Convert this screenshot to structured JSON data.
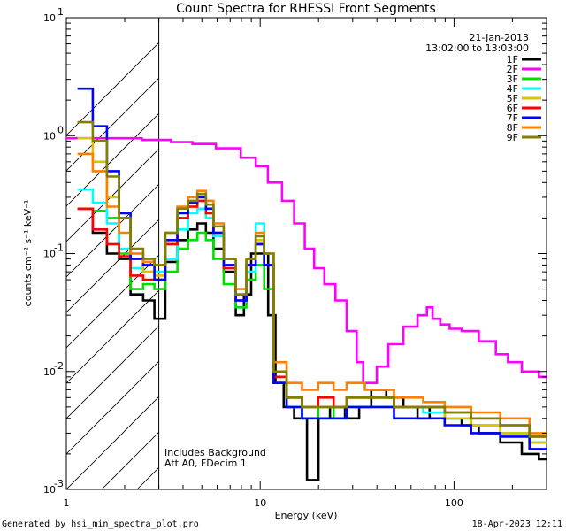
{
  "chart_data": {
    "type": "line",
    "title": "Count Spectra for RHESSI Front Segments",
    "xlabel": "Energy (keV)",
    "ylabel": "counts cm⁻² s⁻¹ keV⁻¹",
    "xscale": "log",
    "yscale": "log",
    "xlim": [
      1,
      300
    ],
    "ylim": [
      0.001,
      10
    ],
    "x_ticks": [
      {
        "value": 1,
        "label": "1"
      },
      {
        "value": 10,
        "label": "10"
      },
      {
        "value": 100,
        "label": "100"
      }
    ],
    "y_ticks": [
      {
        "value": 0.001,
        "base": "10",
        "exp": "-3"
      },
      {
        "value": 0.01,
        "base": "10",
        "exp": "-2"
      },
      {
        "value": 0.1,
        "base": "10",
        "exp": "-1"
      },
      {
        "value": 1,
        "base": "10",
        "exp": "0"
      },
      {
        "value": 10,
        "base": "10",
        "exp": "1"
      }
    ],
    "excluded_region": [
      1,
      3
    ],
    "date": "21-Jan-2013",
    "time_range": "13:02:00 to 13:03:00",
    "annotations": [
      "Includes Background",
      "Att A0, FDecim 1"
    ],
    "legend_position": "top-right",
    "series": [
      {
        "name": "1F",
        "color": "#000000",
        "points": [
          [
            1.25,
            0.24
          ],
          [
            1.5,
            0.15
          ],
          [
            1.75,
            0.1
          ],
          [
            2.0,
            0.09
          ],
          [
            2.3,
            0.045
          ],
          [
            2.7,
            0.04
          ],
          [
            3.0,
            0.028
          ],
          [
            3.5,
            0.085
          ],
          [
            4.0,
            0.13
          ],
          [
            4.5,
            0.16
          ],
          [
            5.0,
            0.18
          ],
          [
            5.5,
            0.15
          ],
          [
            6.0,
            0.11
          ],
          [
            7.0,
            0.07
          ],
          [
            8.0,
            0.03
          ],
          [
            8.5,
            0.045
          ],
          [
            9.5,
            0.1
          ],
          [
            10.5,
            0.1
          ],
          [
            11.5,
            0.03
          ],
          [
            12.5,
            0.008
          ],
          [
            14,
            0.005
          ],
          [
            16,
            0.004
          ],
          [
            19,
            0.0012
          ],
          [
            21,
            0.004
          ],
          [
            25,
            0.005
          ],
          [
            30,
            0.004
          ],
          [
            35,
            0.005
          ],
          [
            40,
            0.007
          ],
          [
            50,
            0.006
          ],
          [
            60,
            0.005
          ],
          [
            70,
            0.004
          ],
          [
            80,
            0.005
          ],
          [
            100,
            0.004
          ],
          [
            120,
            0.0035
          ],
          [
            150,
            0.003
          ],
          [
            200,
            0.0025
          ],
          [
            250,
            0.002
          ],
          [
            300,
            0.0018
          ]
        ]
      },
      {
        "name": "2F",
        "color": "#ff00ff",
        "points": [
          [
            1.25,
            0.95
          ],
          [
            2.0,
            0.95
          ],
          [
            3.0,
            0.92
          ],
          [
            4.0,
            0.88
          ],
          [
            5.0,
            0.85
          ],
          [
            7.0,
            0.78
          ],
          [
            9.0,
            0.65
          ],
          [
            10,
            0.55
          ],
          [
            12,
            0.4
          ],
          [
            14,
            0.28
          ],
          [
            16,
            0.18
          ],
          [
            18,
            0.11
          ],
          [
            20,
            0.075
          ],
          [
            23,
            0.055
          ],
          [
            26,
            0.04
          ],
          [
            30,
            0.022
          ],
          [
            33,
            0.012
          ],
          [
            35,
            0.008
          ],
          [
            38,
            0.008
          ],
          [
            42,
            0.011
          ],
          [
            50,
            0.017
          ],
          [
            60,
            0.024
          ],
          [
            70,
            0.03
          ],
          [
            75,
            0.035
          ],
          [
            80,
            0.028
          ],
          [
            90,
            0.025
          ],
          [
            100,
            0.023
          ],
          [
            120,
            0.022
          ],
          [
            150,
            0.018
          ],
          [
            180,
            0.014
          ],
          [
            200,
            0.012
          ],
          [
            250,
            0.01
          ],
          [
            300,
            0.009
          ]
        ]
      },
      {
        "name": "3F",
        "color": "#00e000",
        "points": [
          [
            1.25,
            0.24
          ],
          [
            1.5,
            0.23
          ],
          [
            1.75,
            0.2
          ],
          [
            2.0,
            0.1
          ],
          [
            2.3,
            0.05
          ],
          [
            2.7,
            0.055
          ],
          [
            3.0,
            0.05
          ],
          [
            3.5,
            0.07
          ],
          [
            4.0,
            0.11
          ],
          [
            4.5,
            0.13
          ],
          [
            5.0,
            0.15
          ],
          [
            5.5,
            0.13
          ],
          [
            6.0,
            0.09
          ],
          [
            7.0,
            0.055
          ],
          [
            8.0,
            0.035
          ],
          [
            9.0,
            0.06
          ],
          [
            10.0,
            0.08
          ],
          [
            11.0,
            0.05
          ],
          [
            12.5,
            0.008
          ],
          [
            15,
            0.006
          ],
          [
            18,
            0.004
          ],
          [
            22,
            0.005
          ],
          [
            26,
            0.004
          ],
          [
            30,
            0.006
          ],
          [
            40,
            0.006
          ],
          [
            60,
            0.005
          ],
          [
            80,
            0.005
          ],
          [
            100,
            0.004
          ],
          [
            150,
            0.0035
          ],
          [
            200,
            0.003
          ],
          [
            300,
            0.0025
          ]
        ]
      },
      {
        "name": "4F",
        "color": "#00ffff",
        "points": [
          [
            1.25,
            0.35
          ],
          [
            1.5,
            0.27
          ],
          [
            1.75,
            0.18
          ],
          [
            2.0,
            0.11
          ],
          [
            2.3,
            0.075
          ],
          [
            2.7,
            0.07
          ],
          [
            3.0,
            0.07
          ],
          [
            3.5,
            0.09
          ],
          [
            4.0,
            0.16
          ],
          [
            4.5,
            0.22
          ],
          [
            5.0,
            0.24
          ],
          [
            5.5,
            0.2
          ],
          [
            6.0,
            0.14
          ],
          [
            7.0,
            0.08
          ],
          [
            8.0,
            0.045
          ],
          [
            9.0,
            0.07
          ],
          [
            10.0,
            0.18
          ],
          [
            11.0,
            0.08
          ],
          [
            12.5,
            0.009
          ],
          [
            15,
            0.005
          ],
          [
            18,
            0.004
          ],
          [
            22,
            0.004
          ],
          [
            26,
            0.004
          ],
          [
            30,
            0.005
          ],
          [
            40,
            0.005
          ],
          [
            60,
            0.005
          ],
          [
            80,
            0.0045
          ],
          [
            100,
            0.004
          ],
          [
            150,
            0.0035
          ],
          [
            200,
            0.003
          ],
          [
            300,
            0.0025
          ]
        ]
      },
      {
        "name": "5F",
        "color": "#e0c000",
        "points": [
          [
            1.25,
            0.95
          ],
          [
            1.5,
            0.6
          ],
          [
            1.75,
            0.3
          ],
          [
            2.0,
            0.2
          ],
          [
            2.3,
            0.1
          ],
          [
            2.7,
            0.07
          ],
          [
            3.0,
            0.065
          ],
          [
            3.5,
            0.12
          ],
          [
            4.0,
            0.2
          ],
          [
            4.5,
            0.25
          ],
          [
            5.0,
            0.28
          ],
          [
            5.5,
            0.22
          ],
          [
            6.0,
            0.15
          ],
          [
            7.0,
            0.08
          ],
          [
            8.0,
            0.045
          ],
          [
            9.0,
            0.08
          ],
          [
            10.0,
            0.13
          ],
          [
            11.0,
            0.1
          ],
          [
            12.5,
            0.01
          ],
          [
            15,
            0.006
          ],
          [
            18,
            0.005
          ],
          [
            22,
            0.005
          ],
          [
            26,
            0.005
          ],
          [
            30,
            0.006
          ],
          [
            40,
            0.006
          ],
          [
            60,
            0.005
          ],
          [
            80,
            0.005
          ],
          [
            100,
            0.004
          ],
          [
            150,
            0.0035
          ],
          [
            200,
            0.003
          ],
          [
            300,
            0.0025
          ]
        ]
      },
      {
        "name": "6F",
        "color": "#ff0000",
        "points": [
          [
            1.25,
            0.24
          ],
          [
            1.5,
            0.16
          ],
          [
            1.75,
            0.12
          ],
          [
            2.0,
            0.095
          ],
          [
            2.3,
            0.065
          ],
          [
            2.7,
            0.06
          ],
          [
            3.0,
            0.06
          ],
          [
            3.5,
            0.12
          ],
          [
            4.0,
            0.2
          ],
          [
            4.5,
            0.25
          ],
          [
            5.0,
            0.28
          ],
          [
            5.5,
            0.22
          ],
          [
            6.0,
            0.15
          ],
          [
            7.0,
            0.075
          ],
          [
            8.0,
            0.04
          ],
          [
            9.0,
            0.08
          ],
          [
            10.0,
            0.12
          ],
          [
            11.0,
            0.08
          ],
          [
            12.5,
            0.009
          ],
          [
            15,
            0.006
          ],
          [
            18,
            0.005
          ],
          [
            22,
            0.006
          ],
          [
            26,
            0.005
          ],
          [
            30,
            0.006
          ],
          [
            40,
            0.006
          ],
          [
            60,
            0.005
          ],
          [
            80,
            0.005
          ],
          [
            100,
            0.0045
          ],
          [
            150,
            0.004
          ],
          [
            200,
            0.0035
          ],
          [
            300,
            0.0028
          ]
        ]
      },
      {
        "name": "7F",
        "color": "#0000ff",
        "points": [
          [
            1.25,
            2.5
          ],
          [
            1.5,
            1.2
          ],
          [
            1.75,
            0.5
          ],
          [
            2.0,
            0.22
          ],
          [
            2.3,
            0.09
          ],
          [
            2.7,
            0.08
          ],
          [
            3.0,
            0.06
          ],
          [
            3.5,
            0.13
          ],
          [
            4.0,
            0.22
          ],
          [
            4.5,
            0.27
          ],
          [
            5.0,
            0.3
          ],
          [
            5.5,
            0.24
          ],
          [
            6.0,
            0.15
          ],
          [
            7.0,
            0.08
          ],
          [
            8.0,
            0.04
          ],
          [
            9.0,
            0.08
          ],
          [
            10.0,
            0.12
          ],
          [
            11.0,
            0.08
          ],
          [
            12.5,
            0.008
          ],
          [
            15,
            0.005
          ],
          [
            18,
            0.004
          ],
          [
            22,
            0.004
          ],
          [
            26,
            0.004
          ],
          [
            30,
            0.005
          ],
          [
            40,
            0.005
          ],
          [
            60,
            0.004
          ],
          [
            80,
            0.004
          ],
          [
            100,
            0.0035
          ],
          [
            150,
            0.003
          ],
          [
            200,
            0.0028
          ],
          [
            300,
            0.0022
          ]
        ]
      },
      {
        "name": "8F",
        "color": "#ff8000",
        "points": [
          [
            1.25,
            0.7
          ],
          [
            1.5,
            0.5
          ],
          [
            1.75,
            0.25
          ],
          [
            2.0,
            0.15
          ],
          [
            2.3,
            0.1
          ],
          [
            2.7,
            0.085
          ],
          [
            3.0,
            0.08
          ],
          [
            3.5,
            0.15
          ],
          [
            4.0,
            0.25
          ],
          [
            4.5,
            0.3
          ],
          [
            5.0,
            0.34
          ],
          [
            5.5,
            0.28
          ],
          [
            6.0,
            0.18
          ],
          [
            7.0,
            0.09
          ],
          [
            8.0,
            0.05
          ],
          [
            9.0,
            0.09
          ],
          [
            10.0,
            0.15
          ],
          [
            11.0,
            0.1
          ],
          [
            12.5,
            0.012
          ],
          [
            15,
            0.008
          ],
          [
            18,
            0.007
          ],
          [
            22,
            0.008
          ],
          [
            26,
            0.007
          ],
          [
            30,
            0.008
          ],
          [
            40,
            0.007
          ],
          [
            60,
            0.006
          ],
          [
            80,
            0.0055
          ],
          [
            100,
            0.005
          ],
          [
            150,
            0.0045
          ],
          [
            200,
            0.004
          ],
          [
            300,
            0.003
          ]
        ]
      },
      {
        "name": "9F",
        "color": "#808000",
        "points": [
          [
            1.25,
            1.3
          ],
          [
            1.5,
            0.9
          ],
          [
            1.75,
            0.45
          ],
          [
            2.0,
            0.2
          ],
          [
            2.3,
            0.11
          ],
          [
            2.7,
            0.09
          ],
          [
            3.0,
            0.08
          ],
          [
            3.5,
            0.15
          ],
          [
            4.0,
            0.24
          ],
          [
            4.5,
            0.28
          ],
          [
            5.0,
            0.32
          ],
          [
            5.5,
            0.26
          ],
          [
            6.0,
            0.17
          ],
          [
            7.0,
            0.09
          ],
          [
            8.0,
            0.045
          ],
          [
            9.0,
            0.09
          ],
          [
            10.0,
            0.14
          ],
          [
            11.0,
            0.1
          ],
          [
            12.5,
            0.01
          ],
          [
            15,
            0.006
          ],
          [
            18,
            0.005
          ],
          [
            22,
            0.005
          ],
          [
            26,
            0.005
          ],
          [
            30,
            0.006
          ],
          [
            40,
            0.006
          ],
          [
            60,
            0.005
          ],
          [
            80,
            0.005
          ],
          [
            100,
            0.0045
          ],
          [
            150,
            0.004
          ],
          [
            200,
            0.0035
          ],
          [
            300,
            0.0028
          ]
        ]
      }
    ]
  },
  "footer": {
    "generated_by": "Generated by hsi_min_spectra_plot.pro",
    "timestamp": "18-Apr-2023 12:11"
  }
}
